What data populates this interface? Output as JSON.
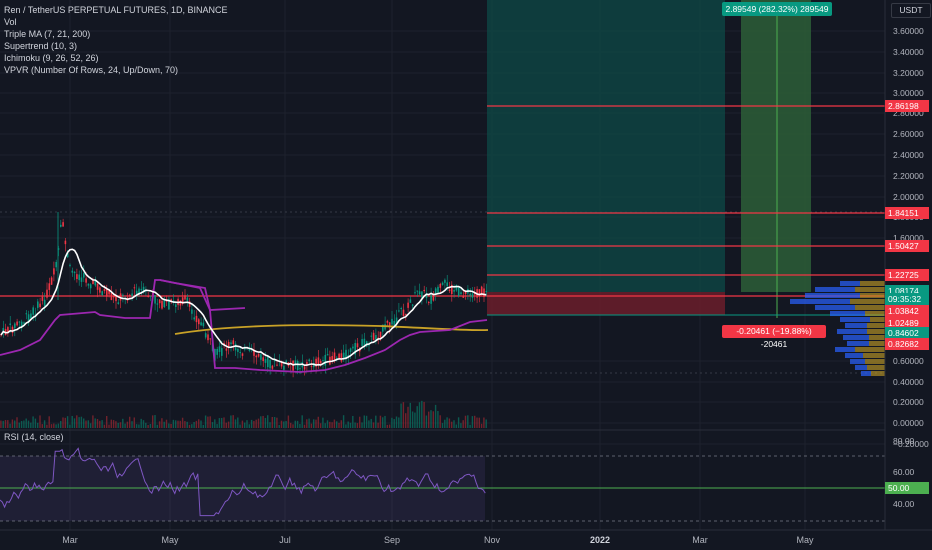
{
  "legend": {
    "title": "Ren / TetherUS PERPETUAL FUTURES, 1D, BINANCE",
    "indicators": [
      "Vol",
      "Triple MA (7, 21, 200)",
      "Supertrend (10, 3)",
      "Ichimoku (9, 26, 52, 26)",
      "VPVR (Number Of Rows, 24, Up/Down, 70)"
    ]
  },
  "rsi_legend": "RSI (14, close)",
  "price_axis": {
    "unit": "USDT",
    "ticks": [
      "3.60000",
      "3.40000",
      "3.20000",
      "3.00000",
      "2.80000",
      "2.60000",
      "2.40000",
      "2.20000",
      "2.00000",
      "1.80000",
      "1.60000",
      "0.60000",
      "0.40000",
      "0.20000",
      "0.00000",
      "−0.20000"
    ],
    "badges": [
      {
        "label": "2.86198",
        "color": "#f23645"
      },
      {
        "label": "1.84151",
        "color": "#f23645"
      },
      {
        "label": "1.50427",
        "color": "#f23645"
      },
      {
        "label": "1.22725",
        "color": "#f23645"
      },
      {
        "label": "1.08174",
        "color": "#089981"
      },
      {
        "label": "09:35:32",
        "color": "#089981"
      },
      {
        "label": "1.03842",
        "color": "#f23645"
      },
      {
        "label": "1.02489",
        "color": "#f23645"
      },
      {
        "label": "0.84602",
        "color": "#089981"
      },
      {
        "label": "0.82682",
        "color": "#f23645"
      }
    ]
  },
  "rsi_axis": {
    "ticks": [
      "80.00",
      "60.00",
      "40.00"
    ],
    "badge": {
      "label": "50.00",
      "color": "#4caf50"
    }
  },
  "time_axis": {
    "labels": [
      {
        "text": "Mar",
        "bold": false
      },
      {
        "text": "May",
        "bold": false
      },
      {
        "text": "Jul",
        "bold": false
      },
      {
        "text": "Sep",
        "bold": false
      },
      {
        "text": "Nov",
        "bold": false
      },
      {
        "text": "2022",
        "bold": true
      },
      {
        "text": "Mar",
        "bold": false
      },
      {
        "text": "May",
        "bold": false
      }
    ]
  },
  "position": {
    "profit_label": "2.89549 (282.32%) 289549",
    "loss_label": "-0.20461 (−19.88%) -20461"
  },
  "colors": {
    "background": "#131722",
    "up": "#089981",
    "down": "#f23645",
    "ma_fast": "#ffffff",
    "supertrend": "#9c27b0",
    "ma_slow": "#c9a227",
    "rsi": "#7e57c2"
  }
}
